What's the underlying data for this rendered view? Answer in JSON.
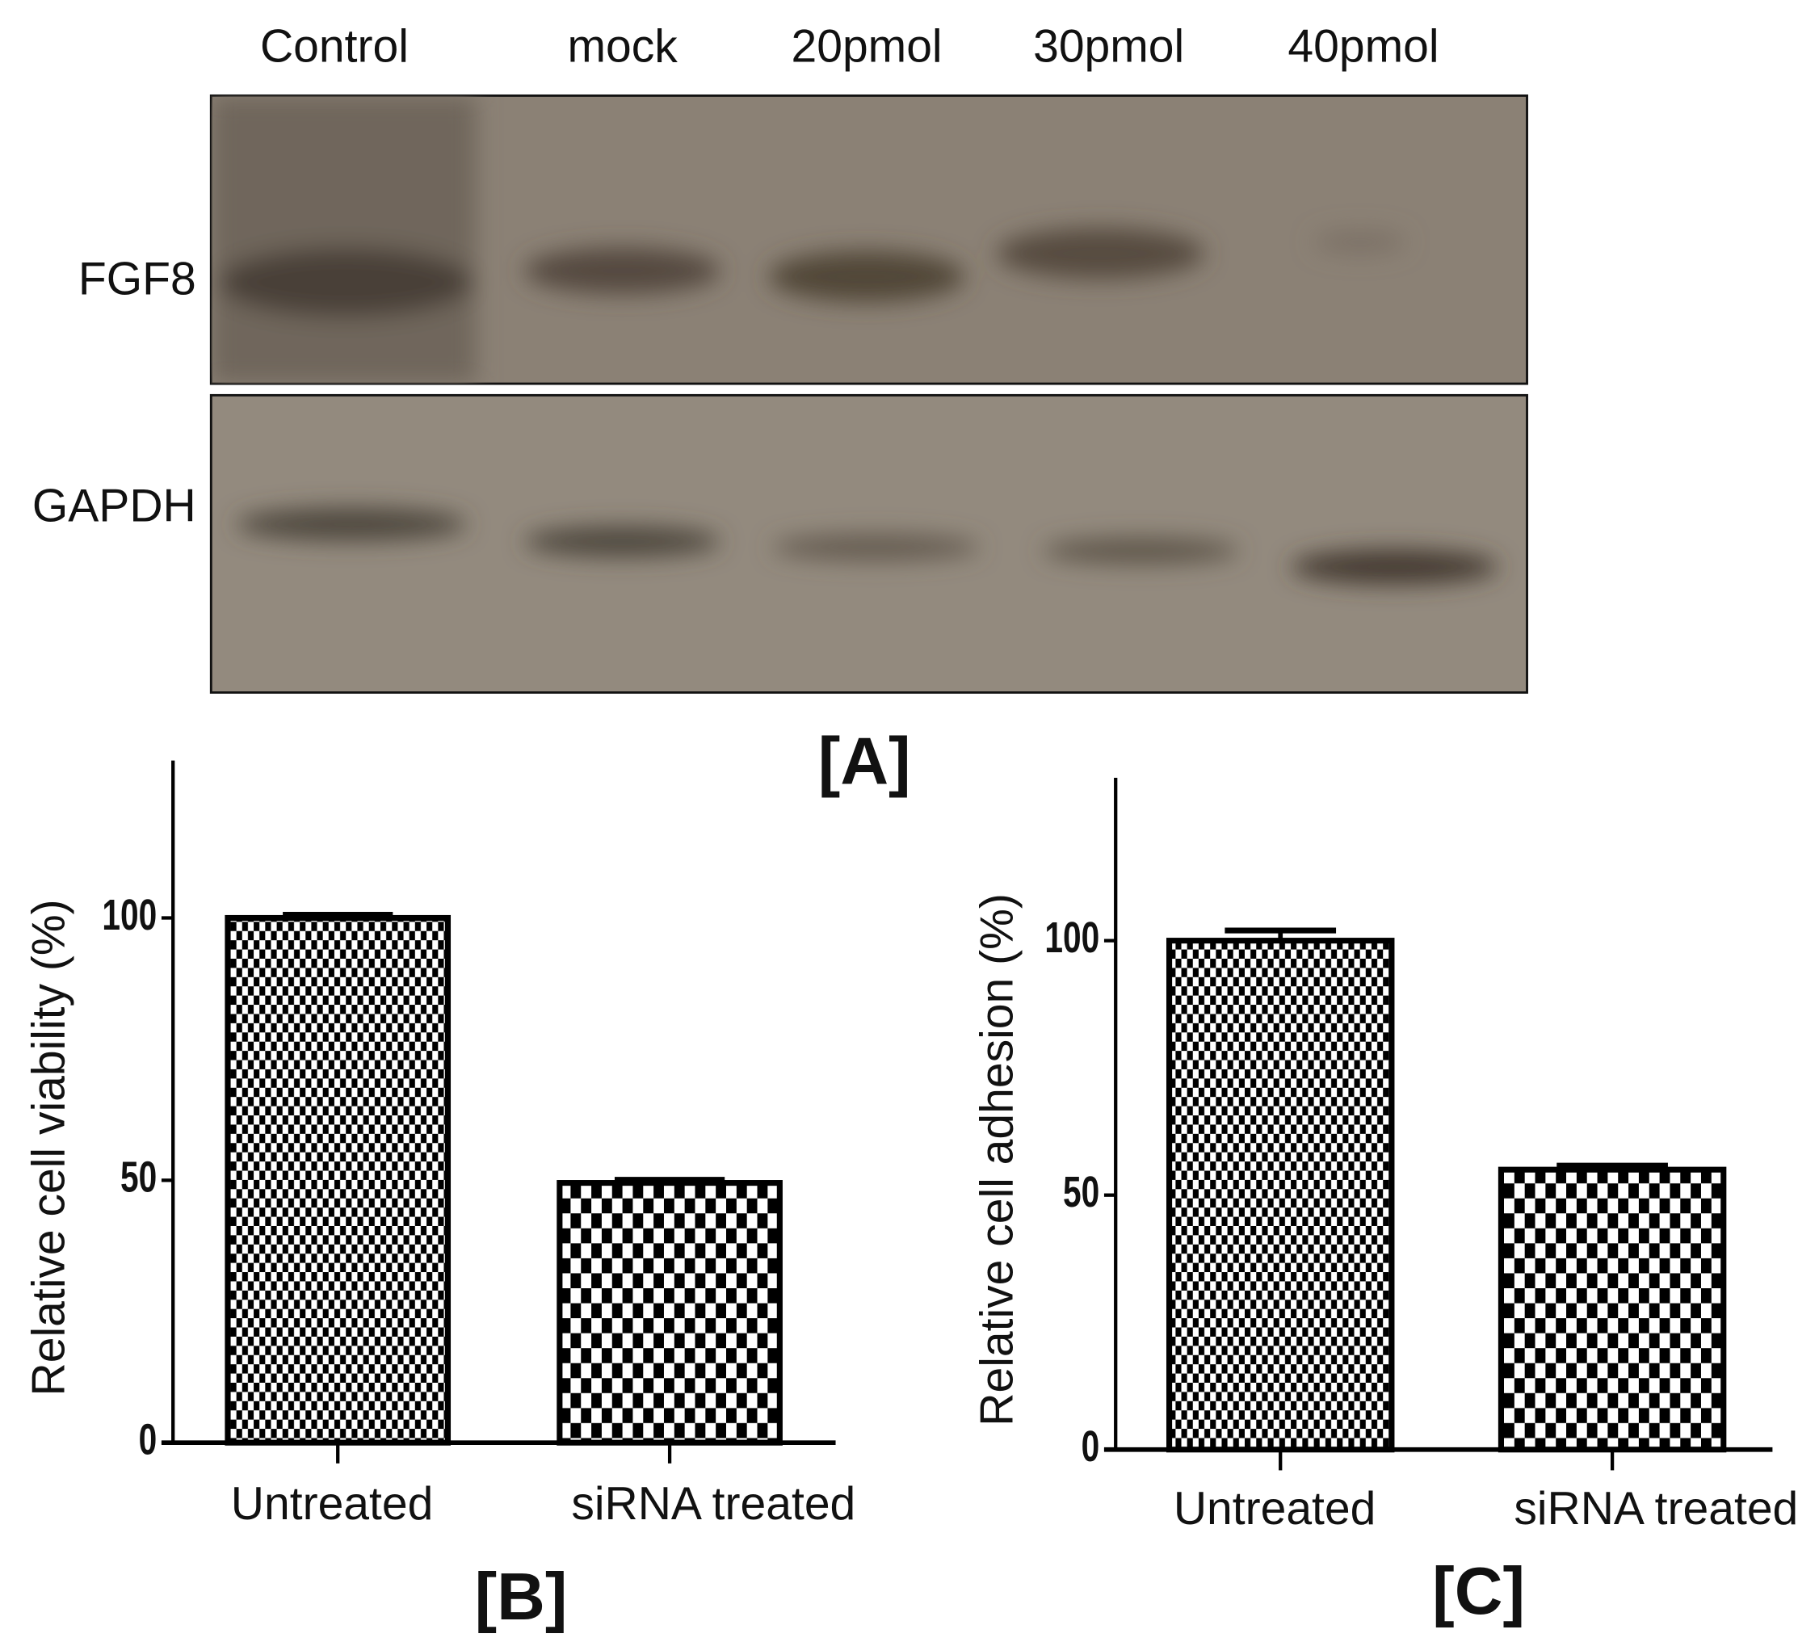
{
  "blot": {
    "lanes": [
      "Control",
      "mock",
      "20pmol",
      "30pmol",
      "40pmol"
    ],
    "rows": [
      "FGF8",
      "GAPDH"
    ],
    "caption": "[A]"
  },
  "chart_data": [
    {
      "type": "bar",
      "caption": "[B]",
      "y_label": "Relative cell viability (%)",
      "categories": [
        "Untreated",
        "siRNA treated"
      ],
      "series": [
        {
          "color": "#000000",
          "values": [
            100,
            49.5
          ],
          "errors": [
            0.6,
            0.6
          ]
        }
      ],
      "ylim": [
        0,
        130
      ],
      "yticks": [
        0,
        50,
        100
      ]
    },
    {
      "type": "bar",
      "caption": "[C]",
      "y_label": "Relative cell adhesion (%)",
      "categories": [
        "Untreated",
        "siRNA treated"
      ],
      "series": [
        {
          "color": "#000000",
          "values": [
            100,
            55
          ],
          "errors": [
            2,
            0.8
          ]
        }
      ],
      "ylim": [
        0,
        132
      ],
      "yticks": [
        0,
        50,
        100
      ]
    }
  ]
}
